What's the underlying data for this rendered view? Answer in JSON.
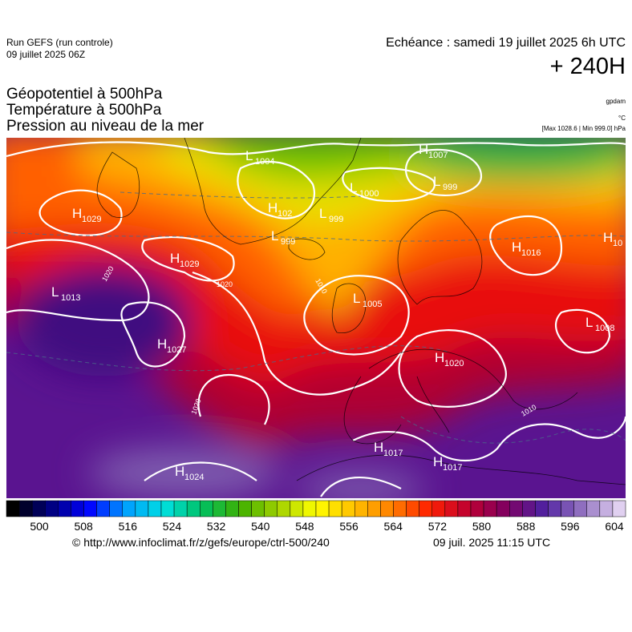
{
  "header": {
    "run": "Run GEFS (run controle)",
    "run_date": "09 juillet 2025 06Z",
    "valid_time": "Echéance : samedi 19 juillet 2025 6h UTC",
    "lead": "+ 240H"
  },
  "titles": [
    "Géopotentiel à 500hPa",
    "Température à 500hPa",
    "Pression au niveau de la mer"
  ],
  "units": [
    "gpdam",
    "°C",
    "[Max 1028.6 | Min 999.0] hPa"
  ],
  "pressure_centers": [
    {
      "letter": "H",
      "value": "1029"
    },
    {
      "letter": "L",
      "value": "1004"
    },
    {
      "letter": "H",
      "value": "1007"
    },
    {
      "letter": "L",
      "value": "999"
    },
    {
      "letter": "L",
      "value": "1000"
    },
    {
      "letter": "H",
      "value": "102"
    },
    {
      "letter": "L",
      "value": "999"
    },
    {
      "letter": "L",
      "value": "999"
    },
    {
      "letter": "H",
      "value": "1029"
    },
    {
      "letter": "H",
      "value": "1016"
    },
    {
      "letter": "H",
      "value": "10"
    },
    {
      "letter": "L",
      "value": "1013"
    },
    {
      "letter": "L",
      "value": "1005"
    },
    {
      "letter": "L",
      "value": "1008"
    },
    {
      "letter": "H",
      "value": "1027"
    },
    {
      "letter": "H",
      "value": "1020"
    },
    {
      "letter": "H",
      "value": "1024"
    },
    {
      "letter": "H",
      "value": "1017"
    },
    {
      "letter": "H",
      "value": "1017"
    }
  ],
  "isobar_labels": [
    "1020",
    "1020",
    "1010",
    "1020",
    "1010"
  ],
  "colorbar": {
    "ticks": [
      500,
      508,
      516,
      524,
      532,
      540,
      548,
      556,
      564,
      572,
      580,
      588,
      596,
      604
    ],
    "colors": [
      "#000000",
      "#000080",
      "#0000ff",
      "#00a0ff",
      "#00e0e0",
      "#00c060",
      "#40b000",
      "#a0d000",
      "#ffff00",
      "#ffc000",
      "#ff8000",
      "#ff2000",
      "#c00030",
      "#800060",
      "#5020a0",
      "#9070c0",
      "#e0d0f0"
    ]
  },
  "footer": {
    "url": "© http://www.infoclimat.fr/z/gefs/europe/ctrl-500/240",
    "generated": "09 juil. 2025 11:15 UTC"
  }
}
